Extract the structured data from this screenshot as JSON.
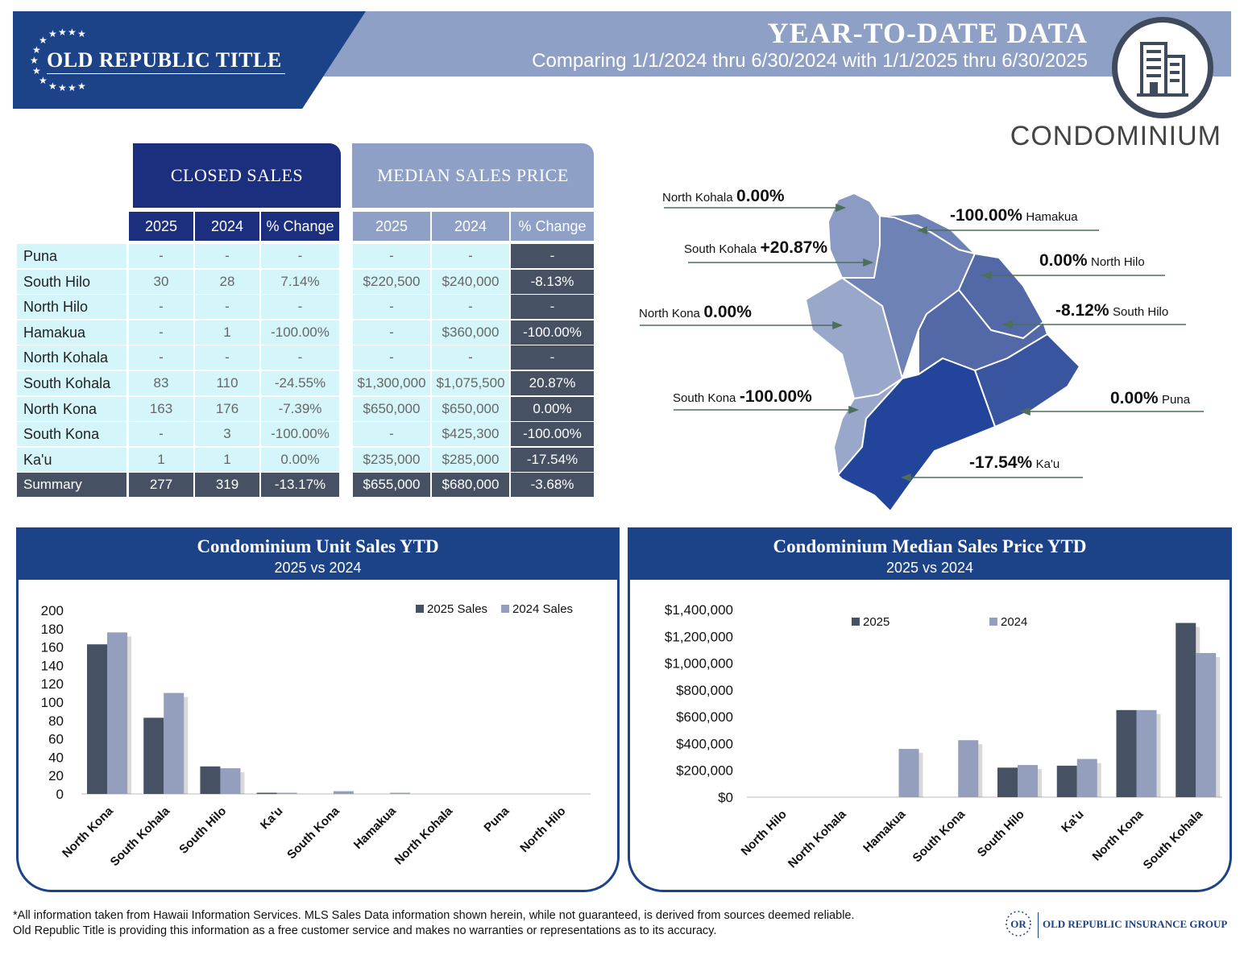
{
  "header": {
    "company": "OLD REPUBLIC TITLE",
    "title": "YEAR-TO-DATE DATA",
    "subtitle": "Comparing 1/1/2024 thru 6/30/2024 with 1/1/2025 thru 6/30/2025",
    "category": "CONDOMINIUM",
    "icon": "building-icon"
  },
  "tables": {
    "closed_sales_title": "CLOSED SALES",
    "median_price_title": "MEDIAN SALES PRICE",
    "col_2025": "2025",
    "col_2024": "2024",
    "col_change": "% Change",
    "rows": [
      {
        "name": "Puna",
        "s25": "-",
        "s24": "-",
        "sch": "-",
        "p25": "-",
        "p24": "-",
        "pch": "-"
      },
      {
        "name": "South Hilo",
        "s25": "30",
        "s24": "28",
        "sch": "7.14%",
        "p25": "$220,500",
        "p24": "$240,000",
        "pch": "-8.13%"
      },
      {
        "name": "North Hilo",
        "s25": "-",
        "s24": "-",
        "sch": "-",
        "p25": "-",
        "p24": "-",
        "pch": "-"
      },
      {
        "name": "Hamakua",
        "s25": "-",
        "s24": "1",
        "sch": "-100.00%",
        "p25": "-",
        "p24": "$360,000",
        "pch": "-100.00%"
      },
      {
        "name": "North Kohala",
        "s25": "-",
        "s24": "-",
        "sch": "-",
        "p25": "-",
        "p24": "-",
        "pch": "-"
      },
      {
        "name": "South Kohala",
        "s25": "83",
        "s24": "110",
        "sch": "-24.55%",
        "p25": "$1,300,000",
        "p24": "$1,075,500",
        "pch": "20.87%"
      },
      {
        "name": "North Kona",
        "s25": "163",
        "s24": "176",
        "sch": "-7.39%",
        "p25": "$650,000",
        "p24": "$650,000",
        "pch": "0.00%"
      },
      {
        "name": "South Kona",
        "s25": "-",
        "s24": "3",
        "sch": "-100.00%",
        "p25": "-",
        "p24": "$425,300",
        "pch": "-100.00%"
      },
      {
        "name": "Ka'u",
        "s25": "1",
        "s24": "1",
        "sch": "0.00%",
        "p25": "$235,000",
        "p24": "$285,000",
        "pch": "-17.54%"
      }
    ],
    "summary": {
      "name": "Summary",
      "s25": "277",
      "s24": "319",
      "sch": "-13.17%",
      "p25": "$655,000",
      "p24": "$680,000",
      "pch": "-3.68%"
    }
  },
  "map": {
    "labels": {
      "north_kohala": {
        "name": "North Kohala",
        "pct": "0.00%"
      },
      "hamakua": {
        "name": "Hamakua",
        "pct": "-100.00%"
      },
      "south_kohala": {
        "name": "South Kohala",
        "pct": "+20.87%"
      },
      "north_hilo": {
        "name": "North Hilo",
        "pct": "0.00%"
      },
      "north_kona": {
        "name": "North Kona",
        "pct": "0.00%"
      },
      "south_hilo": {
        "name": "South Hilo",
        "pct": "-8.12%"
      },
      "south_kona": {
        "name": "South Kona",
        "pct": "-100.00%"
      },
      "puna": {
        "name": "Puna",
        "pct": "0.00%"
      },
      "kau": {
        "name": "Ka'u",
        "pct": "-17.54%"
      }
    },
    "colors": {
      "lightest": "#99a8ca",
      "light": "#8c9bc3",
      "mid": "#6f82b6",
      "midDark": "#5368a6",
      "dark": "#3a559f",
      "darkest": "#22449a"
    }
  },
  "chart_data": [
    {
      "type": "bar",
      "title": "Condominium Unit Sales YTD",
      "subtitle": "2025 vs 2024",
      "categories": [
        "North Kona",
        "South Kohala",
        "South Hilo",
        "Ka'u",
        "South Kona",
        "Hamakua",
        "North Kohala",
        "Puna",
        "North Hilo"
      ],
      "series": [
        {
          "name": "2025 Sales",
          "values": [
            163,
            83,
            30,
            1,
            0,
            0,
            0,
            0,
            0
          ],
          "color": "#465264"
        },
        {
          "name": "2024 Sales",
          "values": [
            176,
            110,
            28,
            1,
            3,
            1,
            0,
            0,
            0
          ],
          "color": "#949fbd"
        }
      ],
      "yticks": [
        "0",
        "20",
        "40",
        "60",
        "80",
        "100",
        "120",
        "140",
        "160",
        "180",
        "200"
      ],
      "ylim": [
        0,
        200
      ],
      "legend": "top-right"
    },
    {
      "type": "bar",
      "title": "Condominium Median Sales Price YTD",
      "subtitle": "2025 vs 2024",
      "categories": [
        "North Hilo",
        "North Kohala",
        "Hamakua",
        "South Kona",
        "South Hilo",
        "Ka'u",
        "North Kona",
        "South Kohala"
      ],
      "series": [
        {
          "name": "2025",
          "values": [
            0,
            0,
            0,
            0,
            220500,
            235000,
            650000,
            1300000
          ],
          "color": "#465264"
        },
        {
          "name": "2024",
          "values": [
            0,
            0,
            360000,
            425300,
            240000,
            285000,
            650000,
            1075500
          ],
          "color": "#949fbd"
        }
      ],
      "yticks": [
        "$0",
        "$200,000",
        "$400,000",
        "$600,000",
        "$800,000",
        "$1,000,000",
        "$1,200,000",
        "$1,400,000"
      ],
      "ylim": [
        0,
        1400000
      ],
      "legend": "top"
    }
  ],
  "footer": {
    "disclaimer_line1": "*All information taken from Hawaii Information Services.  MLS Sales Data information shown herein, while not guaranteed,  is derived from sources deemed reliable.",
    "disclaimer_line2": "Old Republic Title is providing this information as a free customer service and makes no warranties or representations as to its accuracy.",
    "group_name": "OLD REPUBLIC INSURANCE GROUP"
  }
}
